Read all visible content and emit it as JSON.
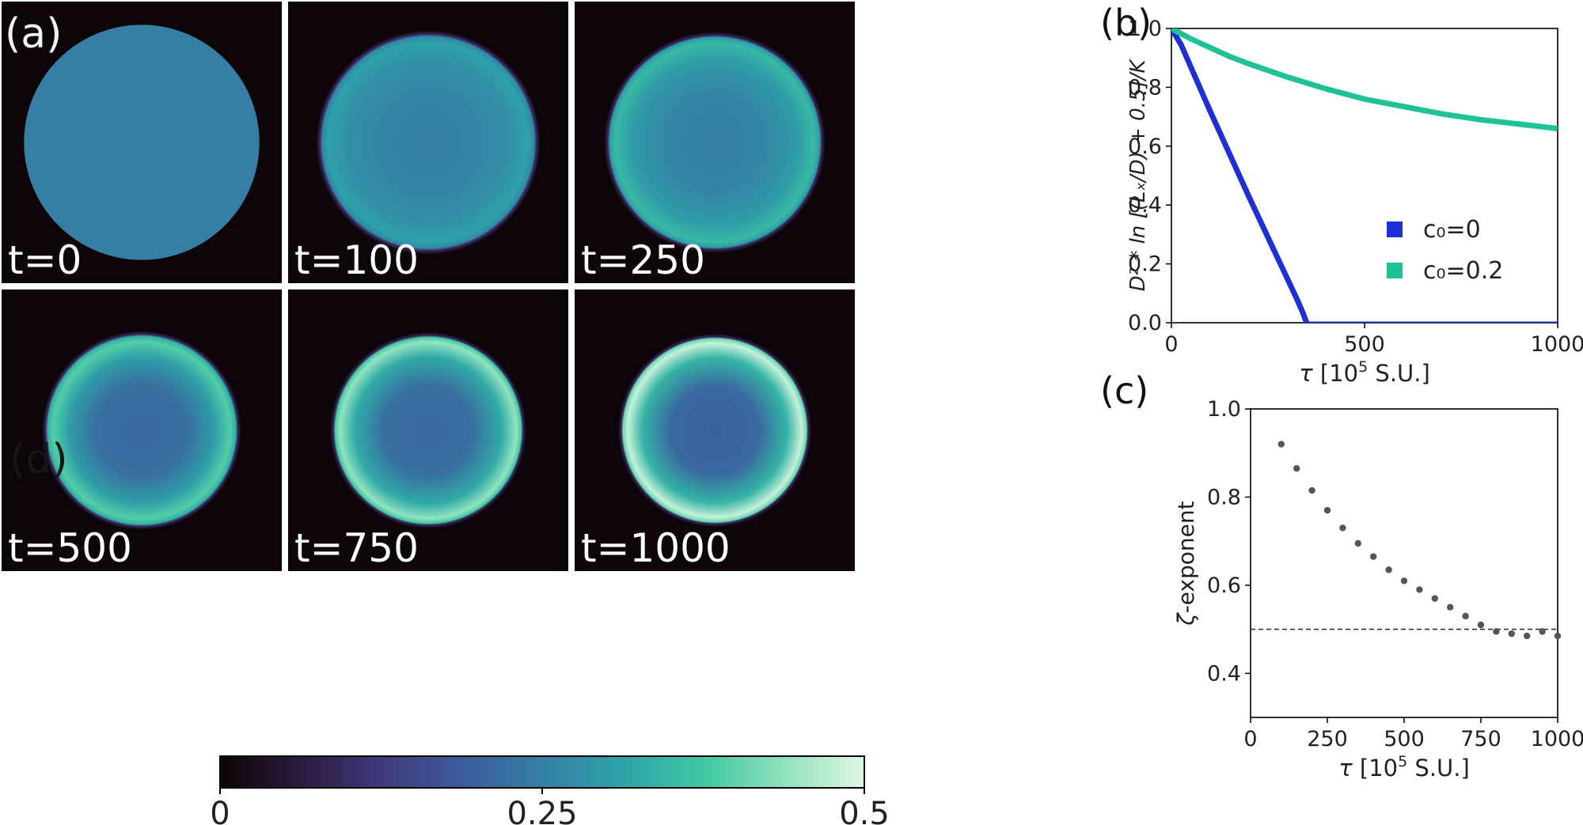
{
  "panel_labels": {
    "a": "(a)",
    "b": "(b)",
    "c": "(c)",
    "d": "(d)"
  },
  "snapshots": [
    {
      "label": "t=0",
      "ring": 0.0,
      "ring_width": 0.1,
      "center": 0.25,
      "radius": 0.84,
      "edge": "sharp"
    },
    {
      "label": "t=100",
      "ring": 0.31,
      "ring_width": 0.12,
      "center": 0.25,
      "radius": 0.8,
      "edge": "soft"
    },
    {
      "label": "t=250",
      "ring": 0.35,
      "ring_width": 0.11,
      "center": 0.25,
      "radius": 0.79,
      "edge": "soft"
    },
    {
      "label": "t=500",
      "ring": 0.39,
      "ring_width": 0.12,
      "center": 0.21,
      "radius": 0.71,
      "edge": "soft"
    },
    {
      "label": "t=750",
      "ring": 0.44,
      "ring_width": 0.11,
      "center": 0.21,
      "radius": 0.7,
      "edge": "soft"
    },
    {
      "label": "t=1000",
      "ring": 0.48,
      "ring_width": 0.11,
      "center": 0.2,
      "radius": 0.69,
      "edge": "soft"
    }
  ],
  "colorbar": {
    "ticks": [
      {
        "value": 0,
        "label": "0"
      },
      {
        "value": 0.25,
        "label": "0.25"
      },
      {
        "value": 0.5,
        "label": "0.5"
      }
    ],
    "range": [
      0,
      0.5
    ],
    "colormap": [
      "#0d0509",
      "#2c1a3e",
      "#403a7c",
      "#3b5b9b",
      "#357fa5",
      "#2ea3a8",
      "#3fc8a2",
      "#8fe2bd",
      "#dff6e6"
    ]
  },
  "chart_data": [
    {
      "id": "b",
      "type": "line",
      "xlabel_sym": "τ",
      "xlabel_rest": " [10",
      "xlabel_exp": "5",
      "xlabel_end": " S.U.]",
      "ylabel": "D² * ln [(Lₓ/D) + 0.5]/K",
      "xlim": [
        0,
        1000
      ],
      "ylim": [
        0,
        1.0
      ],
      "xticks": [
        {
          "v": 0,
          "l": "0"
        },
        {
          "v": 500,
          "l": "500"
        },
        {
          "v": 1000,
          "l": "1000"
        }
      ],
      "yticks": [
        {
          "v": 0,
          "l": "0.0"
        },
        {
          "v": 0.2,
          "l": "0.2"
        },
        {
          "v": 0.4,
          "l": "0.4"
        },
        {
          "v": 0.6,
          "l": "0.6"
        },
        {
          "v": 0.8,
          "l": "0.8"
        },
        {
          "v": 1.0,
          "l": "1.0"
        }
      ],
      "legend_position": "lower-right",
      "series": [
        {
          "name": "c₀=0",
          "color": "#1e2fd6",
          "x": [
            0,
            25,
            50,
            100,
            150,
            200,
            250,
            300,
            325,
            340,
            350
          ],
          "y": [
            1.0,
            0.945,
            0.87,
            0.72,
            0.575,
            0.43,
            0.29,
            0.15,
            0.08,
            0.035,
            0.0
          ]
        },
        {
          "name": "c₀=0.2",
          "color": "#1fc296",
          "x": [
            0,
            50,
            100,
            150,
            200,
            300,
            400,
            500,
            600,
            700,
            800,
            900,
            1000
          ],
          "y": [
            1.0,
            0.965,
            0.935,
            0.905,
            0.88,
            0.835,
            0.795,
            0.76,
            0.735,
            0.71,
            0.69,
            0.675,
            0.66
          ]
        }
      ]
    },
    {
      "id": "c",
      "type": "scatter",
      "xlabel_sym": "τ",
      "xlabel_rest": " [10",
      "xlabel_exp": "5",
      "xlabel_end": " S.U.]",
      "ylabel_sym": "ζ",
      "ylabel_rest": "-exponent",
      "xlim": [
        0,
        1000
      ],
      "ylim": [
        0.3,
        1.0
      ],
      "xticks": [
        {
          "v": 0,
          "l": "0"
        },
        {
          "v": 250,
          "l": "250"
        },
        {
          "v": 500,
          "l": "500"
        },
        {
          "v": 750,
          "l": "750"
        },
        {
          "v": 1000,
          "l": "1000"
        }
      ],
      "yticks": [
        {
          "v": 0.4,
          "l": "0.4"
        },
        {
          "v": 0.6,
          "l": "0.6"
        },
        {
          "v": 0.8,
          "l": "0.8"
        },
        {
          "v": 1.0,
          "l": "1.0"
        }
      ],
      "reference_line": {
        "y": 0.5,
        "style": "dashed",
        "color": "#333333"
      },
      "series": [
        {
          "color": "#555555",
          "x": [
            100,
            150,
            200,
            250,
            300,
            350,
            400,
            450,
            500,
            550,
            600,
            650,
            700,
            750,
            800,
            850,
            900,
            950,
            1000
          ],
          "y": [
            0.92,
            0.865,
            0.815,
            0.77,
            0.73,
            0.695,
            0.665,
            0.635,
            0.61,
            0.59,
            0.57,
            0.55,
            0.53,
            0.51,
            0.495,
            0.49,
            0.485,
            0.495,
            0.485
          ]
        }
      ]
    }
  ]
}
